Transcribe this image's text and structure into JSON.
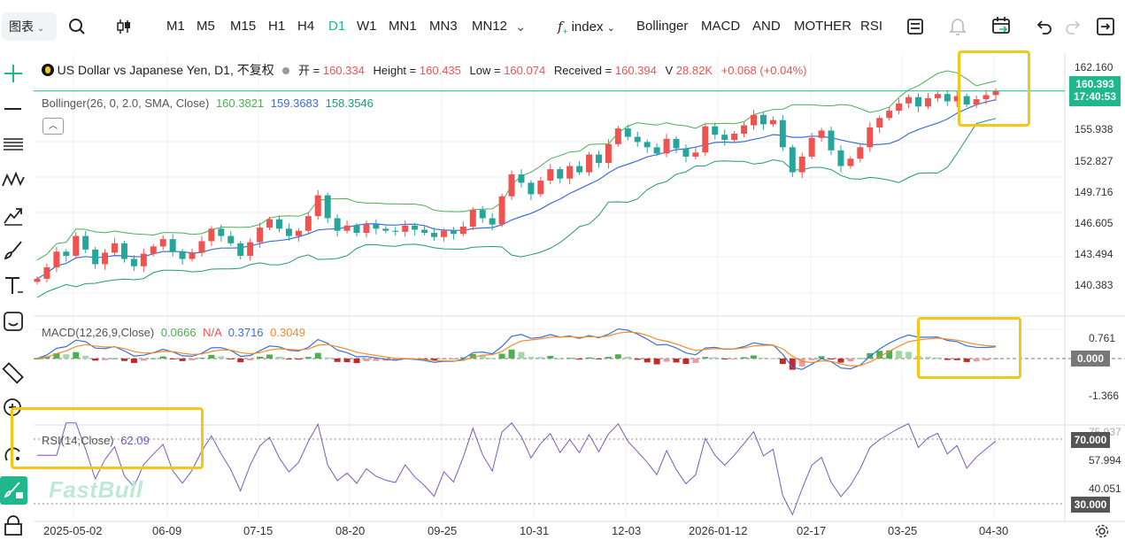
{
  "toolbar": {
    "language": "图表",
    "timeframes": [
      "M1",
      "M5",
      "M15",
      "H1",
      "H4",
      "D1",
      "W1",
      "MN1",
      "MN3",
      "MN12"
    ],
    "active_timeframe": "D1",
    "indicator_menu": "index",
    "indicators": [
      "Bollinger",
      "MACD",
      "AND",
      "MOTHER",
      "RSI"
    ]
  },
  "symbol": {
    "title": "US Dollar vs Japanese Yen, D1, 不复权",
    "open_label": "开 =",
    "open_value": "160.334",
    "high_label": "Height =",
    "high_value": "160.435",
    "low_label": "Low =",
    "low_value": "160.074",
    "close_label": "Received =",
    "close_value": "160.394",
    "volume_label": "V",
    "volume_value": "28.82K",
    "change": "+0.068 (+0.04%)"
  },
  "bollinger": {
    "label": "Bollinger(26, 0, 2.0, SMA, Close)",
    "upper": "160.3821",
    "middle": "159.3683",
    "lower": "158.3546"
  },
  "macd": {
    "label": "MACD(12,26,9,Close)",
    "hist": "0.0666",
    "na": "N/A",
    "macd": "0.3716",
    "signal": "0.3049"
  },
  "rsi": {
    "label": "RSI(14,Close)",
    "value": "62.09"
  },
  "price_axis": {
    "main": [
      "162.160",
      "155.938",
      "152.827",
      "149.716",
      "146.605",
      "143.494",
      "140.383"
    ],
    "current_price": "160.393",
    "countdown": "17:40:53",
    "macd": [
      "0.761",
      "0.000",
      "-1.366"
    ],
    "rsi": [
      "75.937",
      "70.000",
      "57.994",
      "40.051",
      "30.000"
    ]
  },
  "date_axis": [
    "2025-05-02",
    "06-09",
    "07-15",
    "08-20",
    "09-25",
    "10-31",
    "12-03",
    "2026-01-12",
    "02-17",
    "03-25",
    "04-30"
  ],
  "watermark": "FastBull",
  "colors": {
    "up": "#ef5350",
    "down": "#26a69a",
    "bollinger_upper": "#4caf50",
    "bollinger_middle": "#3b6fd8",
    "bollinger_lower": "#1e9a75",
    "macd_line": "#3b6fd8",
    "signal_line": "#f28c28",
    "rsi_line": "#7e57c2",
    "accent": "#1fb88c",
    "highlight": "#f5c518"
  },
  "chart_data": {
    "type": "candlestick",
    "y_range": [
      139.0,
      163.0
    ],
    "close_series": [
      142.4,
      143.5,
      145.0,
      144.6,
      146.5,
      145.2,
      143.8,
      144.9,
      145.8,
      144.3,
      143.6,
      144.8,
      145.5,
      146.2,
      145.0,
      144.3,
      144.9,
      146.0,
      147.2,
      146.5,
      145.8,
      144.6,
      145.9,
      147.3,
      148.1,
      147.2,
      146.5,
      147.0,
      148.4,
      150.4,
      148.2,
      147.0,
      147.5,
      146.8,
      147.6,
      147.2,
      147.0,
      146.9,
      147.5,
      147.1,
      146.8,
      146.4,
      147.0,
      146.7,
      147.4,
      149.0,
      148.2,
      147.6,
      150.3,
      152.4,
      151.6,
      150.5,
      151.8,
      152.9,
      152.0,
      153.2,
      152.6,
      154.3,
      153.5,
      155.3,
      156.8,
      156.0,
      155.5,
      155.0,
      154.4,
      155.8,
      154.9,
      154.1,
      154.5,
      157.0,
      156.2,
      155.7,
      156.3,
      157.1,
      158.1,
      157.2,
      157.6,
      155.0,
      152.6,
      154.1,
      155.9,
      156.6,
      154.7,
      153.2,
      153.9,
      155.0,
      156.9,
      157.8,
      158.5,
      159.2,
      159.8,
      158.9,
      159.7,
      160.1,
      159.4,
      159.9,
      159.1,
      159.6,
      160.0,
      160.39
    ]
  }
}
